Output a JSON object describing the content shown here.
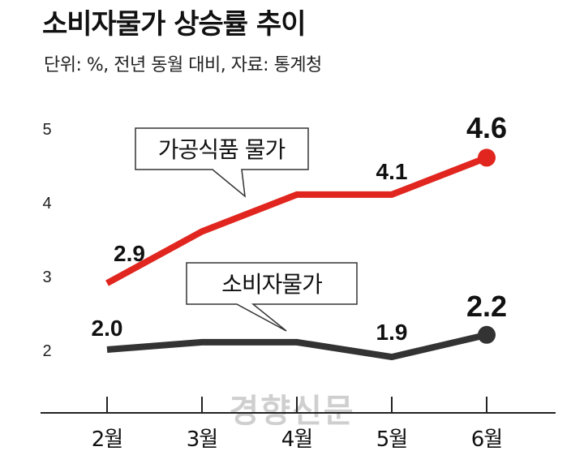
{
  "header": {
    "title": "소비자물가 상승률 추이",
    "subtitle": "단위: %, 전년 동월 대비, 자료: 통계청"
  },
  "watermark": "경향신문",
  "chart_data": {
    "type": "line",
    "title": "소비자물가 상승률 추이",
    "subtitle": "단위: %, 전년 동월 대비, 자료: 통계청",
    "categories": [
      "2월",
      "3월",
      "4월",
      "5월",
      "6월"
    ],
    "y_ticks": [
      "5",
      "4",
      "3",
      "2"
    ],
    "ylim": [
      1.8,
      5.3
    ],
    "grid": false,
    "legend": "callouts",
    "series": [
      {
        "name": "가공식품 물가",
        "values": [
          2.9,
          3.6,
          4.1,
          4.1,
          4.6
        ],
        "labels": [
          "2.9",
          "",
          "",
          "4.1",
          "4.6"
        ],
        "color": "#e0261f"
      },
      {
        "name": "소비자물가",
        "values": [
          2.0,
          2.1,
          2.1,
          1.9,
          2.2
        ],
        "labels": [
          "2.0",
          "",
          "",
          "1.9",
          "2.2"
        ],
        "color": "#333333"
      }
    ]
  }
}
